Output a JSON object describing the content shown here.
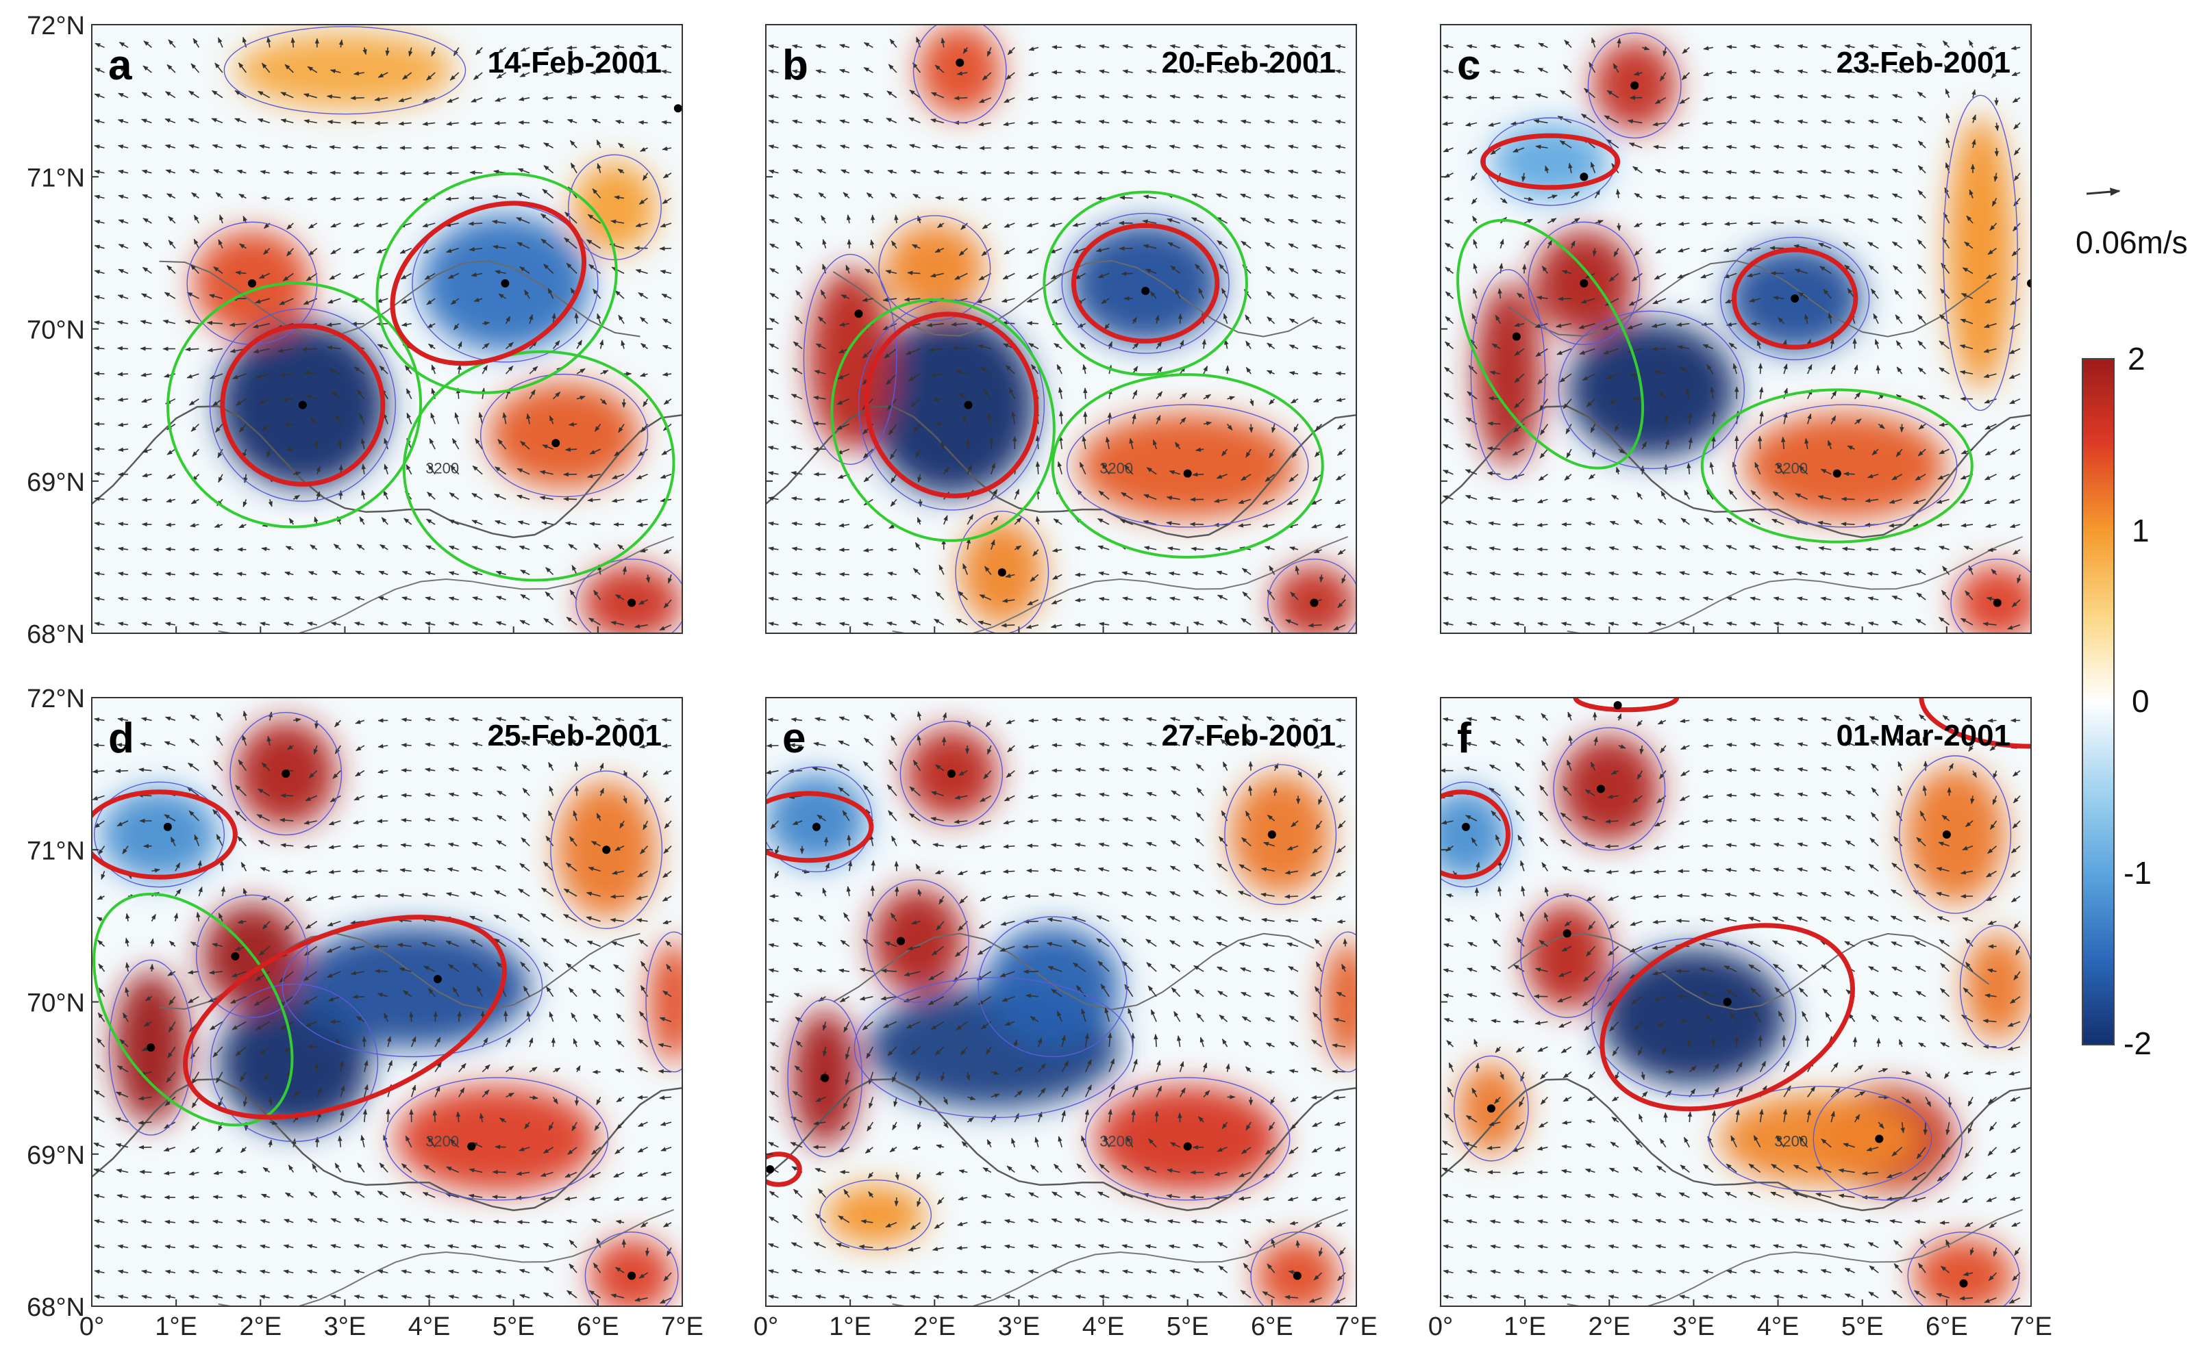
{
  "chart_data": {
    "type": "heatmap",
    "title": "",
    "xlabel": "",
    "ylabel": "",
    "xlim": [
      0,
      7
    ],
    "ylim": [
      68,
      72
    ],
    "x_ticks": [
      "0°",
      "1°E",
      "2°E",
      "3°E",
      "4°E",
      "5°E",
      "6°E",
      "7°E"
    ],
    "y_ticks": [
      "72°N",
      "71°N",
      "70°N",
      "69°N",
      "68°N"
    ],
    "colorbar": {
      "min": -2,
      "max": 2,
      "ticks": [
        "2",
        "1",
        "0",
        "-1",
        "-2"
      ]
    },
    "vector_scale": {
      "label": "0.06m/s",
      "value": 0.06
    },
    "bathymetry_label": "3200",
    "colors": {
      "anticyclone": "#b2182b",
      "cyclone": "#1c3f82",
      "eddy_boundary": "#d62020",
      "tracking_region": "#33cc33",
      "coastline_contour": "#555555",
      "vorticity_contour": "#5b5bd6"
    },
    "panels": [
      {
        "letter": "a",
        "date": "14-Feb-2001",
        "eddies": [
          {
            "lon": 2.5,
            "lat": 69.5,
            "rx": 1.0,
            "ry": 0.55,
            "v": -2.0
          },
          {
            "lon": 4.9,
            "lat": 70.3,
            "rx": 1.0,
            "ry": 0.45,
            "v": -1.2
          },
          {
            "lon": 1.9,
            "lat": 70.3,
            "rx": 0.7,
            "ry": 0.35,
            "v": 1.2
          },
          {
            "lon": 5.6,
            "lat": 69.3,
            "rx": 0.9,
            "ry": 0.35,
            "v": 1.1
          },
          {
            "lon": 6.4,
            "lat": 68.2,
            "rx": 0.6,
            "ry": 0.25,
            "v": 1.5
          },
          {
            "lon": 3.0,
            "lat": 71.7,
            "rx": 1.3,
            "ry": 0.25,
            "v": 0.5
          },
          {
            "lon": 6.2,
            "lat": 70.8,
            "rx": 0.5,
            "ry": 0.3,
            "v": 0.6
          }
        ],
        "red_contours": [
          {
            "lon": 2.5,
            "lat": 69.5,
            "rx": 0.95,
            "ry": 0.52,
            "rot": 0
          },
          {
            "lon": 4.7,
            "lat": 70.3,
            "rx": 1.2,
            "ry": 0.48,
            "rot": -28
          }
        ],
        "green_contours": [
          {
            "lon": 2.4,
            "lat": 69.5,
            "rx": 1.5,
            "ry": 0.8,
            "rot": -10
          },
          {
            "lon": 4.8,
            "lat": 70.3,
            "rx": 1.45,
            "ry": 0.7,
            "rot": -25
          },
          {
            "lon": 5.3,
            "lat": 69.1,
            "rx": 1.6,
            "ry": 0.75,
            "rot": -5
          }
        ],
        "centers": [
          [
            1.9,
            70.3
          ],
          [
            4.9,
            70.3
          ],
          [
            2.5,
            69.5
          ],
          [
            5.5,
            69.25
          ],
          [
            6.4,
            68.2
          ],
          [
            6.95,
            71.45
          ]
        ]
      },
      {
        "letter": "b",
        "date": "20-Feb-2001",
        "eddies": [
          {
            "lon": 2.2,
            "lat": 69.5,
            "rx": 1.0,
            "ry": 0.6,
            "v": -2.0
          },
          {
            "lon": 4.5,
            "lat": 70.3,
            "rx": 0.9,
            "ry": 0.4,
            "v": -1.6
          },
          {
            "lon": 1.0,
            "lat": 69.8,
            "rx": 0.5,
            "ry": 0.6,
            "v": 1.7
          },
          {
            "lon": 2.3,
            "lat": 71.7,
            "rx": 0.5,
            "ry": 0.3,
            "v": 1.2
          },
          {
            "lon": 5.0,
            "lat": 69.1,
            "rx": 1.3,
            "ry": 0.35,
            "v": 1.1
          },
          {
            "lon": 2.8,
            "lat": 68.4,
            "rx": 0.5,
            "ry": 0.35,
            "v": 0.8
          },
          {
            "lon": 6.5,
            "lat": 68.2,
            "rx": 0.5,
            "ry": 0.25,
            "v": 1.6
          },
          {
            "lon": 2.0,
            "lat": 70.4,
            "rx": 0.6,
            "ry": 0.3,
            "v": 0.8
          }
        ],
        "red_contours": [
          {
            "lon": 2.2,
            "lat": 69.5,
            "rx": 1.0,
            "ry": 0.6,
            "rot": -15
          },
          {
            "lon": 4.5,
            "lat": 70.3,
            "rx": 0.85,
            "ry": 0.38,
            "rot": 0
          }
        ],
        "green_contours": [
          {
            "lon": 2.1,
            "lat": 69.4,
            "rx": 1.3,
            "ry": 0.8,
            "rot": -20
          },
          {
            "lon": 4.5,
            "lat": 70.3,
            "rx": 1.2,
            "ry": 0.6,
            "rot": 0
          },
          {
            "lon": 5.0,
            "lat": 69.1,
            "rx": 1.6,
            "ry": 0.6,
            "rot": 0
          }
        ],
        "centers": [
          [
            2.3,
            71.75
          ],
          [
            1.1,
            70.1
          ],
          [
            4.5,
            70.25
          ],
          [
            2.4,
            69.5
          ],
          [
            5.0,
            69.05
          ],
          [
            2.8,
            68.4
          ],
          [
            6.5,
            68.2
          ]
        ]
      },
      {
        "letter": "c",
        "date": "23-Feb-2001",
        "eddies": [
          {
            "lon": 2.5,
            "lat": 69.6,
            "rx": 1.0,
            "ry": 0.45,
            "v": -2.0
          },
          {
            "lon": 4.2,
            "lat": 70.2,
            "rx": 0.8,
            "ry": 0.35,
            "v": -1.6
          },
          {
            "lon": 1.7,
            "lat": 70.3,
            "rx": 0.6,
            "ry": 0.35,
            "v": 1.8
          },
          {
            "lon": 0.8,
            "lat": 69.7,
            "rx": 0.4,
            "ry": 0.6,
            "v": 1.8
          },
          {
            "lon": 2.3,
            "lat": 71.6,
            "rx": 0.5,
            "ry": 0.3,
            "v": 1.6
          },
          {
            "lon": 4.8,
            "lat": 69.1,
            "rx": 1.2,
            "ry": 0.35,
            "v": 1.1
          },
          {
            "lon": 6.6,
            "lat": 68.2,
            "rx": 0.5,
            "ry": 0.25,
            "v": 1.3
          },
          {
            "lon": 6.4,
            "lat": 70.5,
            "rx": 0.4,
            "ry": 0.9,
            "v": 0.7
          },
          {
            "lon": 1.3,
            "lat": 71.1,
            "rx": 0.7,
            "ry": 0.25,
            "v": -0.6
          }
        ],
        "red_contours": [
          {
            "lon": 4.2,
            "lat": 70.2,
            "rx": 0.72,
            "ry": 0.32,
            "rot": 0
          },
          {
            "lon": 1.3,
            "lat": 71.1,
            "rx": 0.8,
            "ry": 0.17,
            "rot": 0
          }
        ],
        "green_contours": [
          {
            "lon": 1.3,
            "lat": 69.9,
            "rx": 0.85,
            "ry": 0.9,
            "rot": -30
          },
          {
            "lon": 4.7,
            "lat": 69.1,
            "rx": 1.6,
            "ry": 0.5,
            "rot": 0
          }
        ],
        "centers": [
          [
            2.3,
            71.6
          ],
          [
            1.7,
            71.0
          ],
          [
            1.7,
            70.3
          ],
          [
            4.2,
            70.2
          ],
          [
            0.9,
            69.95
          ],
          [
            4.7,
            69.05
          ],
          [
            7.0,
            70.3
          ],
          [
            6.6,
            68.2
          ]
        ]
      },
      {
        "letter": "d",
        "date": "25-Feb-2001",
        "eddies": [
          {
            "lon": 2.4,
            "lat": 69.6,
            "rx": 0.9,
            "ry": 0.45,
            "v": -2.0
          },
          {
            "lon": 3.8,
            "lat": 70.1,
            "rx": 1.4,
            "ry": 0.4,
            "v": -1.6
          },
          {
            "lon": 1.9,
            "lat": 70.3,
            "rx": 0.6,
            "ry": 0.35,
            "v": 2.0
          },
          {
            "lon": 0.7,
            "lat": 69.7,
            "rx": 0.45,
            "ry": 0.5,
            "v": 2.0
          },
          {
            "lon": 2.3,
            "lat": 71.5,
            "rx": 0.6,
            "ry": 0.35,
            "v": 1.8
          },
          {
            "lon": 4.8,
            "lat": 69.1,
            "rx": 1.2,
            "ry": 0.35,
            "v": 1.3
          },
          {
            "lon": 6.1,
            "lat": 71.0,
            "rx": 0.6,
            "ry": 0.45,
            "v": 0.9
          },
          {
            "lon": 6.9,
            "lat": 70.0,
            "rx": 0.3,
            "ry": 0.4,
            "v": 1.2
          },
          {
            "lon": 0.8,
            "lat": 71.1,
            "rx": 0.7,
            "ry": 0.3,
            "v": -0.9
          },
          {
            "lon": 6.4,
            "lat": 68.2,
            "rx": 0.5,
            "ry": 0.25,
            "v": 1.3
          }
        ],
        "red_contours": [
          {
            "lon": 3.0,
            "lat": 69.9,
            "rx": 2.0,
            "ry": 0.55,
            "rot": -22
          },
          {
            "lon": 0.8,
            "lat": 71.1,
            "rx": 0.9,
            "ry": 0.28,
            "rot": 0
          }
        ],
        "green_contours": [
          {
            "lon": 1.2,
            "lat": 69.95,
            "rx": 0.95,
            "ry": 0.85,
            "rot": -35
          }
        ],
        "centers": [
          [
            2.3,
            71.5
          ],
          [
            0.9,
            71.15
          ],
          [
            6.1,
            71.0
          ],
          [
            1.7,
            70.3
          ],
          [
            4.1,
            70.15
          ],
          [
            0.7,
            69.7
          ],
          [
            4.5,
            69.05
          ],
          [
            6.4,
            68.2
          ]
        ]
      },
      {
        "letter": "e",
        "date": "27-Feb-2001",
        "eddies": [
          {
            "lon": 2.7,
            "lat": 69.7,
            "rx": 1.5,
            "ry": 0.4,
            "v": -1.8
          },
          {
            "lon": 3.4,
            "lat": 70.1,
            "rx": 0.8,
            "ry": 0.4,
            "v": -1.4
          },
          {
            "lon": 1.8,
            "lat": 70.4,
            "rx": 0.55,
            "ry": 0.35,
            "v": 1.8
          },
          {
            "lon": 0.7,
            "lat": 69.5,
            "rx": 0.4,
            "ry": 0.45,
            "v": 1.9
          },
          {
            "lon": 2.2,
            "lat": 71.5,
            "rx": 0.55,
            "ry": 0.3,
            "v": 1.7
          },
          {
            "lon": 5.0,
            "lat": 69.1,
            "rx": 1.1,
            "ry": 0.35,
            "v": 1.4
          },
          {
            "lon": 6.1,
            "lat": 71.1,
            "rx": 0.6,
            "ry": 0.4,
            "v": 0.9
          },
          {
            "lon": 6.9,
            "lat": 70.0,
            "rx": 0.3,
            "ry": 0.4,
            "v": 1.1
          },
          {
            "lon": 0.6,
            "lat": 71.2,
            "rx": 0.6,
            "ry": 0.3,
            "v": -1.0
          },
          {
            "lon": 6.3,
            "lat": 68.2,
            "rx": 0.5,
            "ry": 0.25,
            "v": 1.2
          },
          {
            "lon": 1.3,
            "lat": 68.6,
            "rx": 0.6,
            "ry": 0.2,
            "v": 0.7
          }
        ],
        "red_contours": [
          {
            "lon": 0.5,
            "lat": 71.15,
            "rx": 0.75,
            "ry": 0.22,
            "rot": 0
          },
          {
            "lon": 0.15,
            "lat": 68.9,
            "rx": 0.25,
            "ry": 0.1,
            "rot": 0
          }
        ],
        "green_contours": [],
        "centers": [
          [
            2.2,
            71.5
          ],
          [
            0.6,
            71.15
          ],
          [
            6.0,
            71.1
          ],
          [
            1.6,
            70.4
          ],
          [
            0.7,
            69.5
          ],
          [
            5.0,
            69.05
          ],
          [
            0.05,
            68.9
          ],
          [
            6.3,
            68.2
          ]
        ]
      },
      {
        "letter": "f",
        "date": "01-Mar-2001",
        "eddies": [
          {
            "lon": 3.0,
            "lat": 69.9,
            "rx": 1.1,
            "ry": 0.45,
            "v": -2.0
          },
          {
            "lon": 1.5,
            "lat": 70.3,
            "rx": 0.5,
            "ry": 0.35,
            "v": 1.7
          },
          {
            "lon": 2.0,
            "lat": 71.4,
            "rx": 0.6,
            "ry": 0.35,
            "v": 1.8
          },
          {
            "lon": 5.3,
            "lat": 69.1,
            "rx": 0.8,
            "ry": 0.35,
            "v": 1.6
          },
          {
            "lon": 6.1,
            "lat": 71.1,
            "rx": 0.6,
            "ry": 0.45,
            "v": 0.9
          },
          {
            "lon": 6.6,
            "lat": 70.1,
            "rx": 0.4,
            "ry": 0.35,
            "v": 0.9
          },
          {
            "lon": 0.6,
            "lat": 69.3,
            "rx": 0.4,
            "ry": 0.3,
            "v": 0.9
          },
          {
            "lon": 4.5,
            "lat": 69.1,
            "rx": 1.2,
            "ry": 0.3,
            "v": 0.8
          },
          {
            "lon": 0.3,
            "lat": 71.1,
            "rx": 0.5,
            "ry": 0.3,
            "v": -0.9
          },
          {
            "lon": 6.2,
            "lat": 68.2,
            "rx": 0.6,
            "ry": 0.25,
            "v": 1.2
          }
        ],
        "red_contours": [
          {
            "lon": 3.4,
            "lat": 69.9,
            "rx": 1.55,
            "ry": 0.55,
            "rot": -22
          },
          {
            "lon": 0.25,
            "lat": 71.1,
            "rx": 0.55,
            "ry": 0.28,
            "rot": 0
          },
          {
            "lon": 2.2,
            "lat": 72.0,
            "rx": 0.6,
            "ry": 0.08,
            "rot": 0
          },
          {
            "lon": 7.0,
            "lat": 72.0,
            "rx": 1.3,
            "ry": 0.32,
            "rot": 0
          }
        ],
        "green_contours": [],
        "centers": [
          [
            2.1,
            71.95
          ],
          [
            1.9,
            71.4
          ],
          [
            0.3,
            71.15
          ],
          [
            6.0,
            71.1
          ],
          [
            1.5,
            70.45
          ],
          [
            3.4,
            70.0
          ],
          [
            0.6,
            69.3
          ],
          [
            5.2,
            69.1
          ],
          [
            6.2,
            68.15
          ]
        ]
      }
    ]
  }
}
